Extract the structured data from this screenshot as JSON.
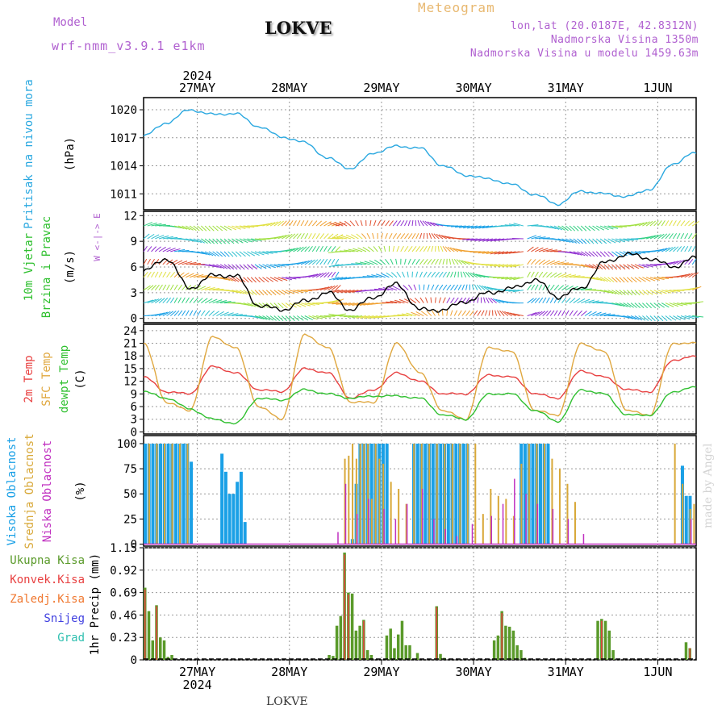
{
  "header": {
    "model_label": "Model",
    "model_value": "wrf-nmm_v3.9.1 e1km",
    "title": "LOKVE",
    "meteogram": "Meteogram",
    "lonlat": "lon,lat (20.0187E, 42.8312N)",
    "elevation": "Nadmorska Visina 1350m",
    "elevation_model": "Nadmorska Visina u modelu 1459.63m"
  },
  "watermark": "made by Angel",
  "footer_station": "LOKVE",
  "time_axis": {
    "year_label": "2024",
    "days": [
      "27MAY",
      "28MAY",
      "29MAY",
      "30MAY",
      "31MAY",
      "1JUN"
    ],
    "start_hour_offset": 10,
    "total_hours": 144
  },
  "colors": {
    "pressure": "#2aa8e0",
    "temp2m": "#e84040",
    "sfc_temp": "#e0a840",
    "dewpoint": "#30c030",
    "high_cloud": "#1aa0e6",
    "mid_cloud": "#d8a838",
    "low_cloud": "#c030c0",
    "total_precip": "#5a9a2a",
    "conv_precip": "#e84040",
    "frozen_precip": "#f07830",
    "snow": "#4040e0",
    "hail": "#30c0b0"
  },
  "panels": {
    "pressure": {
      "label": "Pritisak na nivou mora",
      "unit": "(hPa)",
      "ticks": [
        "1011",
        "1014",
        "1017",
        "1020"
      ]
    },
    "wind": {
      "label1": "10m Vjetar",
      "label2": "Brzina i Pravac",
      "unit": "(m/s)",
      "compass": "W <-|-> E",
      "ticks": [
        "0",
        "3",
        "6",
        "9",
        "12"
      ]
    },
    "temp": {
      "label1": "2m Temp",
      "label2": "SFC Temp",
      "label3": "dewpt Temp",
      "unit": "(C)",
      "ticks": [
        "0",
        "3",
        "6",
        "9",
        "12",
        "15",
        "18",
        "21",
        "24"
      ]
    },
    "cloud": {
      "label1": "Visoka Oblacnost",
      "label2": "Srednja Oblacnost",
      "label3": "Niska Oblacnost",
      "unit": "(%)",
      "ticks": [
        "0",
        "25",
        "50",
        "75",
        "100"
      ]
    },
    "precip": {
      "legend": [
        "Ukupna Kisa",
        "Konvek.Kisa",
        "Zaledj.Kisa",
        "Snijeg",
        "Grad"
      ],
      "unit": "1hr Precip (mm)",
      "ticks": [
        "0",
        "0.23",
        "0.46",
        "0.69",
        "0.92",
        "1.15"
      ]
    }
  },
  "chart_data": [
    {
      "type": "line",
      "title": "",
      "ylabel": "Pritisak na nivou mora (hPa)",
      "ylim": [
        1009.3,
        1021.3
      ],
      "grid": true,
      "series": [
        {
          "name": "Pritisak",
          "x": [
            0,
            6,
            12,
            18,
            24,
            30,
            36,
            42,
            48,
            54,
            60,
            66,
            72,
            78,
            84,
            90,
            96,
            102,
            108,
            114,
            120,
            126,
            132,
            138,
            143
          ],
          "values": [
            1017.2,
            1018.6,
            1020.0,
            1019.5,
            1019.6,
            1018.2,
            1017.1,
            1016.5,
            1014.8,
            1013.7,
            1015.4,
            1016.1,
            1015.9,
            1014.0,
            1013.0,
            1012.6,
            1012.0,
            1010.9,
            1009.9,
            1011.3,
            1011.0,
            1010.7,
            1011.5,
            1014.2,
            1015.3
          ]
        }
      ]
    },
    {
      "type": "line",
      "title": "",
      "ylabel": "10m Vjetar Brzina i Pravac (m/s)",
      "ylim": [
        -0.5,
        12.5
      ],
      "series": [
        {
          "name": "Brzina",
          "x": [
            0,
            6,
            12,
            18,
            24,
            30,
            36,
            42,
            48,
            54,
            60,
            66,
            72,
            78,
            84,
            90,
            96,
            102,
            108,
            114,
            120,
            126,
            132,
            138,
            143
          ],
          "values": [
            5.5,
            7.0,
            3.5,
            5.0,
            5.0,
            1.5,
            1.0,
            2.0,
            3.0,
            1.0,
            2.5,
            4.0,
            1.0,
            1.0,
            2.0,
            3.0,
            3.5,
            4.5,
            2.5,
            3.5,
            6.5,
            7.5,
            7.0,
            6.0,
            7.0
          ]
        }
      ]
    },
    {
      "type": "line",
      "title": "",
      "ylabel": "Temp (C)",
      "ylim": [
        -0.5,
        25.5
      ],
      "grid": true,
      "series": [
        {
          "name": "2m Temp",
          "x": [
            0,
            6,
            12,
            18,
            24,
            30,
            36,
            42,
            48,
            54,
            60,
            66,
            72,
            78,
            84,
            90,
            96,
            102,
            108,
            114,
            120,
            126,
            132,
            138,
            143
          ],
          "values": [
            13,
            9.5,
            9,
            15.5,
            14,
            10,
            9.5,
            15,
            14,
            8,
            10,
            14,
            12,
            9,
            9,
            13.5,
            13,
            9,
            8,
            14.5,
            13,
            10,
            9.5,
            17,
            17.8
          ]
        },
        {
          "name": "SFC Temp",
          "x": [
            0,
            6,
            12,
            18,
            24,
            30,
            36,
            42,
            48,
            54,
            60,
            66,
            72,
            78,
            84,
            90,
            96,
            102,
            108,
            114,
            120,
            126,
            132,
            138,
            143
          ],
          "values": [
            21,
            7,
            5,
            22.5,
            20,
            6,
            3,
            23,
            20,
            7,
            7,
            21,
            14,
            5,
            3,
            20,
            19,
            5,
            4,
            21,
            19,
            5,
            4,
            21,
            21
          ]
        },
        {
          "name": "dewpt Temp",
          "x": [
            0,
            6,
            12,
            18,
            24,
            30,
            36,
            42,
            48,
            54,
            60,
            66,
            72,
            78,
            84,
            90,
            96,
            102,
            108,
            114,
            120,
            126,
            132,
            138,
            143
          ],
          "values": [
            9.5,
            8,
            5.5,
            3,
            2,
            8,
            7.5,
            10,
            9,
            8,
            8.5,
            8.5,
            8,
            4,
            3,
            9,
            9,
            5,
            2.5,
            10,
            9,
            4,
            4,
            9.5,
            10.5
          ]
        }
      ]
    },
    {
      "type": "bar",
      "title": "",
      "ylabel": "Oblacnost (%)",
      "ylim": [
        0,
        100
      ],
      "series": [
        {
          "name": "Visoka Oblacnost",
          "x": [
            0,
            1,
            2,
            3,
            4,
            5,
            6,
            7,
            8,
            9,
            10,
            11,
            12,
            20,
            21,
            22,
            23,
            24,
            25,
            26,
            54,
            55,
            56,
            57,
            58,
            59,
            60,
            61,
            62,
            63,
            70,
            71,
            72,
            73,
            74,
            75,
            76,
            77,
            78,
            79,
            80,
            81,
            82,
            83,
            84,
            98,
            99,
            100,
            101,
            102,
            103,
            104,
            105,
            140,
            141,
            142
          ],
          "values": [
            100,
            100,
            100,
            100,
            100,
            100,
            100,
            100,
            100,
            100,
            100,
            100,
            82,
            90,
            72,
            50,
            50,
            62,
            72,
            22,
            5,
            60,
            100,
            100,
            100,
            100,
            100,
            100,
            100,
            100,
            100,
            100,
            100,
            100,
            100,
            100,
            100,
            100,
            100,
            100,
            100,
            100,
            100,
            100,
            100,
            100,
            100,
            100,
            100,
            100,
            100,
            100,
            100,
            78,
            48,
            48
          ]
        },
        {
          "name": "Srednja Oblacnost",
          "x": [
            1,
            3,
            5,
            7,
            9,
            11,
            52,
            53,
            54,
            55,
            56,
            57,
            58,
            59,
            60,
            61,
            62,
            64,
            66,
            68,
            70,
            72,
            74,
            76,
            78,
            80,
            82,
            84,
            86,
            88,
            90,
            92,
            94,
            96,
            98,
            100,
            102,
            104,
            106,
            108,
            110,
            112,
            138,
            140,
            142,
            143
          ],
          "values": [
            100,
            100,
            100,
            100,
            100,
            100,
            85,
            88,
            100,
            85,
            100,
            100,
            100,
            45,
            100,
            85,
            80,
            62,
            55,
            40,
            100,
            100,
            100,
            100,
            100,
            100,
            100,
            100,
            100,
            30,
            55,
            48,
            45,
            28,
            80,
            100,
            100,
            100,
            85,
            75,
            60,
            42,
            100,
            60,
            35,
            40
          ]
        },
        {
          "name": "Niska Oblacnost",
          "x": [
            50,
            52,
            55,
            58,
            62,
            65,
            68,
            72,
            75,
            78,
            81,
            85,
            90,
            93,
            96,
            99,
            102,
            106,
            110,
            114,
            142
          ],
          "values": [
            12,
            60,
            30,
            45,
            35,
            25,
            40,
            55,
            25,
            15,
            8,
            20,
            28,
            40,
            65,
            50,
            40,
            35,
            25,
            10,
            25
          ]
        }
      ]
    },
    {
      "type": "bar",
      "title": "",
      "ylabel": "1hr Precip (mm)",
      "ylim": [
        0,
        1.15
      ],
      "series": [
        {
          "name": "Ukupna Kisa",
          "x": [
            0,
            1,
            2,
            3,
            4,
            5,
            6,
            7,
            48,
            49,
            50,
            51,
            52,
            53,
            54,
            55,
            56,
            57,
            58,
            59,
            63,
            64,
            65,
            66,
            67,
            68,
            69,
            71,
            76,
            77,
            78,
            91,
            92,
            93,
            94,
            95,
            96,
            97,
            98,
            99,
            118,
            119,
            120,
            121,
            122,
            141,
            142
          ],
          "values": [
            0.74,
            0.5,
            0.2,
            0.56,
            0.23,
            0.2,
            0.03,
            0.05,
            0.05,
            0.04,
            0.35,
            0.45,
            1.1,
            0.69,
            0.68,
            0.3,
            0.35,
            0.41,
            0.1,
            0.05,
            0.25,
            0.32,
            0.12,
            0.26,
            0.4,
            0.15,
            0.15,
            0.07,
            0.55,
            0.06,
            0.02,
            0.2,
            0.25,
            0.5,
            0.35,
            0.34,
            0.3,
            0.15,
            0.1,
            0.02,
            0.4,
            0.42,
            0.4,
            0.3,
            0.1,
            0.18,
            0.12
          ]
        },
        {
          "name": "Konvek.Kisa",
          "x": [
            0,
            3,
            52,
            53,
            57,
            76,
            93,
            119,
            142
          ],
          "values": [
            0.72,
            0.55,
            1.08,
            0.67,
            0.4,
            0.54,
            0.48,
            0.4,
            0.12
          ]
        }
      ]
    }
  ]
}
